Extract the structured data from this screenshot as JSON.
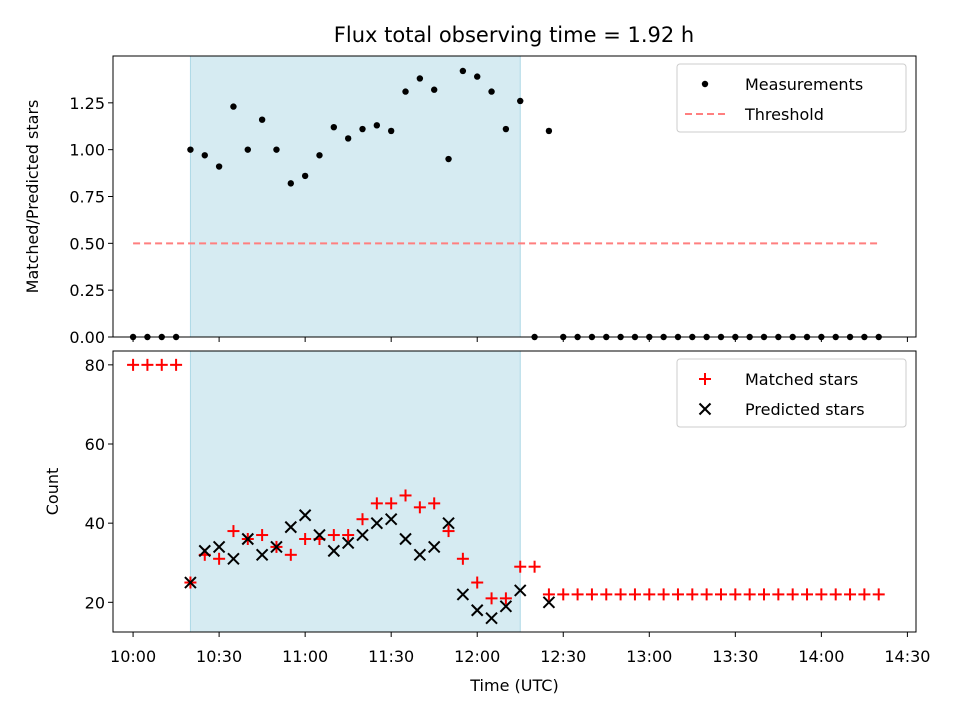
{
  "title": "Flux total observing time = 1.92 h",
  "chart_data": [
    {
      "type": "scatter",
      "title": "Flux total observing time = 1.92 h",
      "ylabel": "Matched/Predicted stars",
      "xlabel": "",
      "xlim": [
        "09:53",
        "14:33"
      ],
      "ylim": [
        0,
        1.5
      ],
      "yticks": [
        0,
        0.25,
        0.5,
        0.75,
        1.0,
        1.25
      ],
      "ytick_labels": [
        "0.00",
        "0.25",
        "0.50",
        "0.75",
        "1.00",
        "1.25"
      ],
      "shaded_span": [
        "10:20",
        "12:15"
      ],
      "shade_color": "#add8e6",
      "legend": {
        "position": "top-right",
        "entries": [
          "Measurements",
          "Threshold"
        ]
      },
      "series": [
        {
          "name": "Measurements",
          "marker": "dot",
          "color": "#000000",
          "points": [
            [
              "10:00",
              0
            ],
            [
              "10:05",
              0
            ],
            [
              "10:10",
              0
            ],
            [
              "10:15",
              0
            ],
            [
              "10:20",
              1.0
            ],
            [
              "10:25",
              0.97
            ],
            [
              "10:30",
              0.91
            ],
            [
              "10:35",
              1.23
            ],
            [
              "10:40",
              1.0
            ],
            [
              "10:45",
              1.16
            ],
            [
              "10:50",
              1.0
            ],
            [
              "10:55",
              0.82
            ],
            [
              "11:00",
              0.86
            ],
            [
              "11:05",
              0.97
            ],
            [
              "11:10",
              1.12
            ],
            [
              "11:15",
              1.06
            ],
            [
              "11:20",
              1.11
            ],
            [
              "11:25",
              1.13
            ],
            [
              "11:30",
              1.1
            ],
            [
              "11:35",
              1.31
            ],
            [
              "11:40",
              1.38
            ],
            [
              "11:45",
              1.32
            ],
            [
              "11:50",
              0.95
            ],
            [
              "11:55",
              1.42
            ],
            [
              "12:00",
              1.39
            ],
            [
              "12:05",
              1.31
            ],
            [
              "12:10",
              1.11
            ],
            [
              "12:15",
              1.26
            ],
            [
              "12:20",
              0
            ],
            [
              "12:25",
              1.1
            ],
            [
              "12:30",
              0
            ],
            [
              "12:35",
              0
            ],
            [
              "12:40",
              0
            ],
            [
              "12:45",
              0
            ],
            [
              "12:50",
              0
            ],
            [
              "12:55",
              0
            ],
            [
              "13:00",
              0
            ],
            [
              "13:05",
              0
            ],
            [
              "13:10",
              0
            ],
            [
              "13:15",
              0
            ],
            [
              "13:20",
              0
            ],
            [
              "13:25",
              0
            ],
            [
              "13:30",
              0
            ],
            [
              "13:35",
              0
            ],
            [
              "13:40",
              0
            ],
            [
              "13:45",
              0
            ],
            [
              "13:50",
              0
            ],
            [
              "13:55",
              0
            ],
            [
              "14:00",
              0
            ],
            [
              "14:05",
              0
            ],
            [
              "14:10",
              0
            ],
            [
              "14:15",
              0
            ],
            [
              "14:20",
              0
            ]
          ]
        },
        {
          "name": "Threshold",
          "marker": "dashed-line",
          "color": "#ff7f7f",
          "points": [
            [
              "10:00",
              0.5
            ],
            [
              "14:20",
              0.5
            ]
          ]
        }
      ]
    },
    {
      "type": "scatter",
      "title": "",
      "ylabel": "Count",
      "xlabel": "Time (UTC)",
      "xlim": [
        "09:53",
        "14:33"
      ],
      "ylim": [
        12.5,
        83.5
      ],
      "yticks": [
        20,
        40,
        60,
        80
      ],
      "ytick_labels": [
        "20",
        "40",
        "60",
        "80"
      ],
      "xticks": [
        "10:00",
        "10:30",
        "11:00",
        "11:30",
        "12:00",
        "12:30",
        "13:00",
        "13:30",
        "14:00",
        "14:30"
      ],
      "xtick_labels": [
        "10:00",
        "10:30",
        "11:00",
        "11:30",
        "12:00",
        "12:30",
        "13:00",
        "13:30",
        "14:00",
        "14:30"
      ],
      "shaded_span": [
        "10:20",
        "12:15"
      ],
      "shade_color": "#add8e6",
      "legend": {
        "position": "top-right",
        "entries": [
          "Matched stars",
          "Predicted stars"
        ]
      },
      "series": [
        {
          "name": "Matched stars",
          "marker": "plus",
          "color": "#ff0000",
          "points": [
            [
              "10:00",
              80
            ],
            [
              "10:05",
              80
            ],
            [
              "10:10",
              80
            ],
            [
              "10:15",
              80
            ],
            [
              "10:20",
              25
            ],
            [
              "10:25",
              32
            ],
            [
              "10:30",
              31
            ],
            [
              "10:35",
              38
            ],
            [
              "10:40",
              36
            ],
            [
              "10:45",
              37
            ],
            [
              "10:50",
              34
            ],
            [
              "10:55",
              32
            ],
            [
              "11:00",
              36
            ],
            [
              "11:05",
              36
            ],
            [
              "11:10",
              37
            ],
            [
              "11:15",
              37
            ],
            [
              "11:20",
              41
            ],
            [
              "11:25",
              45
            ],
            [
              "11:30",
              45
            ],
            [
              "11:35",
              47
            ],
            [
              "11:40",
              44
            ],
            [
              "11:45",
              45
            ],
            [
              "11:50",
              38
            ],
            [
              "11:55",
              31
            ],
            [
              "12:00",
              25
            ],
            [
              "12:05",
              21
            ],
            [
              "12:10",
              21
            ],
            [
              "12:15",
              29
            ],
            [
              "12:20",
              29
            ],
            [
              "12:25",
              22
            ],
            [
              "12:30",
              22
            ],
            [
              "12:35",
              22
            ],
            [
              "12:40",
              22
            ],
            [
              "12:45",
              22
            ],
            [
              "12:50",
              22
            ],
            [
              "12:55",
              22
            ],
            [
              "13:00",
              22
            ],
            [
              "13:05",
              22
            ],
            [
              "13:10",
              22
            ],
            [
              "13:15",
              22
            ],
            [
              "13:20",
              22
            ],
            [
              "13:25",
              22
            ],
            [
              "13:30",
              22
            ],
            [
              "13:35",
              22
            ],
            [
              "13:40",
              22
            ],
            [
              "13:45",
              22
            ],
            [
              "13:50",
              22
            ],
            [
              "13:55",
              22
            ],
            [
              "14:00",
              22
            ],
            [
              "14:05",
              22
            ],
            [
              "14:10",
              22
            ],
            [
              "14:15",
              22
            ],
            [
              "14:20",
              22
            ]
          ]
        },
        {
          "name": "Predicted stars",
          "marker": "x",
          "color": "#000000",
          "points": [
            [
              "10:20",
              25
            ],
            [
              "10:25",
              33
            ],
            [
              "10:30",
              34
            ],
            [
              "10:35",
              31
            ],
            [
              "10:40",
              36
            ],
            [
              "10:45",
              32
            ],
            [
              "10:50",
              34
            ],
            [
              "10:55",
              39
            ],
            [
              "11:00",
              42
            ],
            [
              "11:05",
              37
            ],
            [
              "11:10",
              33
            ],
            [
              "11:15",
              35
            ],
            [
              "11:20",
              37
            ],
            [
              "11:25",
              40
            ],
            [
              "11:30",
              41
            ],
            [
              "11:35",
              36
            ],
            [
              "11:40",
              32
            ],
            [
              "11:45",
              34
            ],
            [
              "11:50",
              40
            ],
            [
              "11:55",
              22
            ],
            [
              "12:00",
              18
            ],
            [
              "12:05",
              16
            ],
            [
              "12:10",
              19
            ],
            [
              "12:15",
              23
            ],
            [
              "12:25",
              20
            ]
          ]
        }
      ]
    }
  ]
}
